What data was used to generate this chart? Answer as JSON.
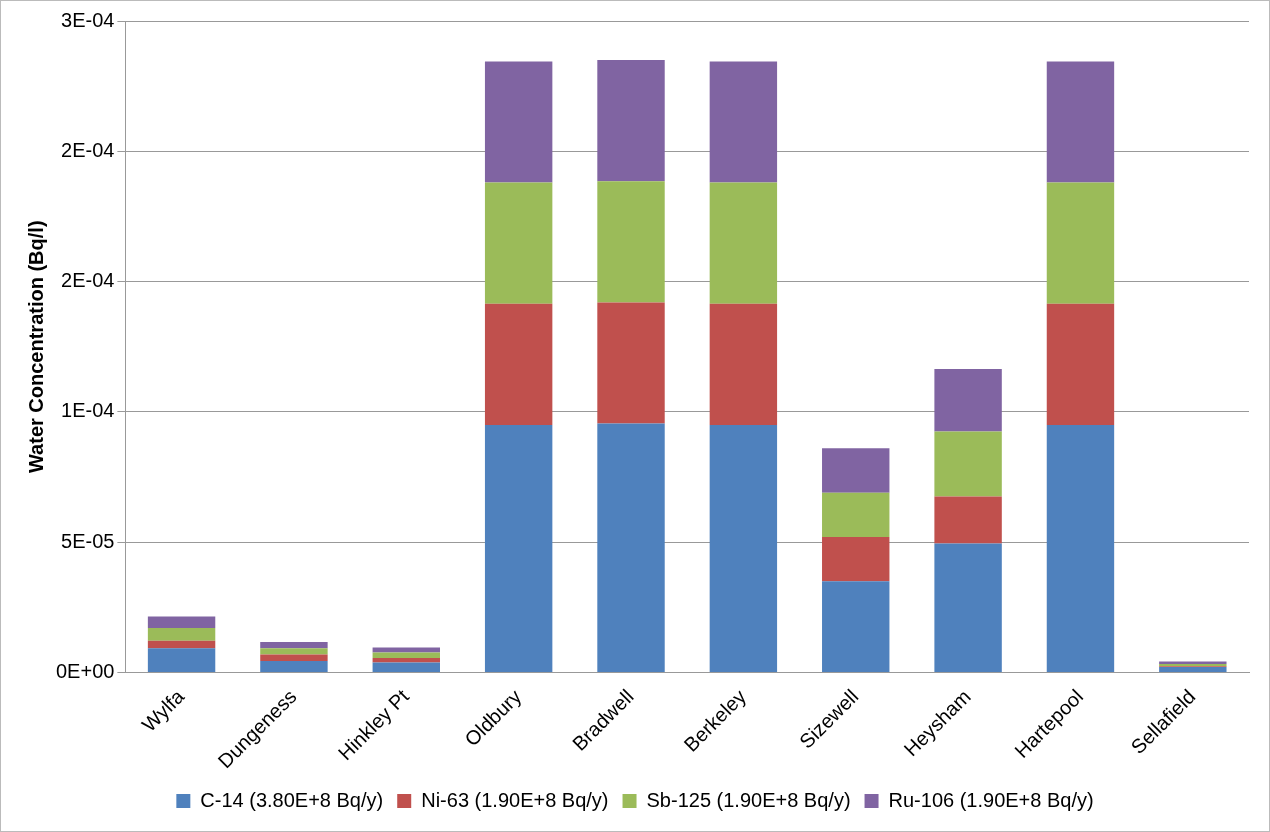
{
  "chart_data": {
    "type": "bar",
    "stacked": true,
    "ylabel": "Water Concentration (Bq/l)",
    "categories": [
      "Wylfa",
      "Dungeness",
      "Hinkley Pt",
      "Oldbury",
      "Bradwell",
      "Berkeley",
      "Sizewell",
      "Heysham",
      "Hartepool",
      "Sellafield"
    ],
    "series": [
      {
        "name": "C-14 (3.80E+8 Bq/y)",
        "color": "#4f81bd",
        "values": [
          9.3e-06,
          4.4e-06,
          3.8e-06,
          9.5e-05,
          9.55e-05,
          9.5e-05,
          3.5e-05,
          4.95e-05,
          9.5e-05,
          2.1e-06
        ]
      },
      {
        "name": "Ni-63 (1.90E+8 Bq/y)",
        "color": "#c0504d",
        "values": [
          2.9e-06,
          2.5e-06,
          1.8e-06,
          4.65e-05,
          4.65e-05,
          4.65e-05,
          1.7e-05,
          1.8e-05,
          4.65e-05,
          3e-07
        ]
      },
      {
        "name": "Sb-125 (1.90E+8 Bq/y)",
        "color": "#9bbb59",
        "values": [
          4.9e-06,
          2.4e-06,
          2.1e-06,
          4.65e-05,
          4.65e-05,
          4.65e-05,
          1.7e-05,
          2.5e-05,
          4.65e-05,
          9e-07
        ]
      },
      {
        "name": "Ru-106 (1.90E+8 Bq/y)",
        "color": "#8064a2",
        "values": [
          4.4e-06,
          2.4e-06,
          1.9e-06,
          4.65e-05,
          4.65e-05,
          4.65e-05,
          1.7e-05,
          2.4e-05,
          4.65e-05,
          9e-07
        ]
      }
    ],
    "ylim": [
      0,
      0.00025
    ],
    "yticks": [
      {
        "value": 0,
        "label": "0E+00"
      },
      {
        "value": 5e-05,
        "label": "5E-05"
      },
      {
        "value": 0.0001,
        "label": "1E-04"
      },
      {
        "value": 0.00015,
        "label": "2E-04"
      },
      {
        "value": 0.0002,
        "label": "2E-04"
      },
      {
        "value": 0.00025,
        "label": "3E-04"
      }
    ],
    "grid": "y",
    "legend": "bottom"
  }
}
